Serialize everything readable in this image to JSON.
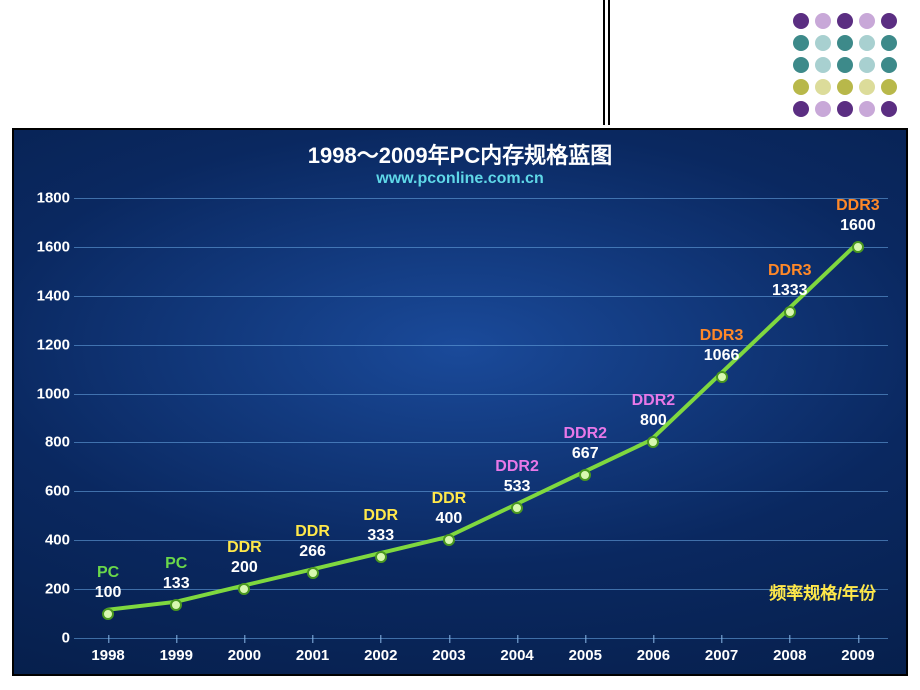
{
  "dot_grid": {
    "cols": 5,
    "rows": 5,
    "colors": {
      "0": "#5b2e82",
      "1": "#3d8a8a",
      "2": "#3d8a8a",
      "3": "#b8b84a",
      "4": "#5b2e82",
      "alt0": "#c8a8d8",
      "alt1": "#a8d0d0",
      "alt2": "#a8d0d0",
      "alt3": "#dcdc9a",
      "alt4": "#c8a8d8"
    }
  },
  "chart": {
    "type": "line",
    "title": "1998～2009年PC内存规格蓝图",
    "title_fontsize": 22,
    "title_color": "#ffffff",
    "subtitle": "www.pconline.com.cn",
    "subtitle_fontsize": 16,
    "subtitle_color": "#5fd8e8",
    "legend_text": "频率规格/年份",
    "legend_color": "#ffe84a",
    "background": "radial-gradient",
    "ylim": [
      0,
      1800
    ],
    "ytick_step": 200,
    "yticks": [
      0,
      200,
      400,
      600,
      800,
      1000,
      1200,
      1400,
      1600,
      1800
    ],
    "xticks": [
      "1998",
      "1999",
      "2000",
      "2001",
      "2002",
      "2003",
      "2004",
      "2005",
      "2006",
      "2007",
      "2008",
      "2009"
    ],
    "line_color": "#7fd83f",
    "line_width": 4,
    "marker_fill": "#d8f8b0",
    "marker_border": "#4a9820",
    "marker_size": 12,
    "grid_color": "rgba(100,160,220,0.6)",
    "label_fontsize": 16,
    "points": [
      {
        "year": "1998",
        "value": 100,
        "type": "PC",
        "type_color": "#6ad84a"
      },
      {
        "year": "1999",
        "value": 133,
        "type": "PC",
        "type_color": "#6ad84a"
      },
      {
        "year": "2000",
        "value": 200,
        "type": "DDR",
        "type_color": "#ffe84a"
      },
      {
        "year": "2001",
        "value": 266,
        "type": "DDR",
        "type_color": "#ffe84a"
      },
      {
        "year": "2002",
        "value": 333,
        "type": "DDR",
        "type_color": "#ffe84a"
      },
      {
        "year": "2003",
        "value": 400,
        "type": "DDR",
        "type_color": "#ffe84a"
      },
      {
        "year": "2004",
        "value": 533,
        "type": "DDR2",
        "type_color": "#e878e8"
      },
      {
        "year": "2005",
        "value": 667,
        "type": "DDR2",
        "type_color": "#e878e8"
      },
      {
        "year": "2006",
        "value": 800,
        "type": "DDR2",
        "type_color": "#e878e8"
      },
      {
        "year": "2007",
        "value": 1066,
        "type": "DDR3",
        "type_color": "#ff8828"
      },
      {
        "year": "2008",
        "value": 1333,
        "type": "DDR3",
        "type_color": "#ff8828"
      },
      {
        "year": "2009",
        "value": 1600,
        "type": "DDR3",
        "type_color": "#ff8828"
      }
    ]
  }
}
